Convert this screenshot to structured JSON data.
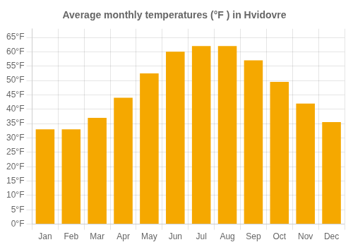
{
  "chart_data": {
    "type": "bar",
    "title": "Average monthly temperatures (°F ) in Hvidovre",
    "categories": [
      "Jan",
      "Feb",
      "Mar",
      "Apr",
      "May",
      "Jun",
      "Jul",
      "Aug",
      "Sep",
      "Oct",
      "Nov",
      "Dec"
    ],
    "values": [
      33,
      33,
      37,
      44,
      52.5,
      60,
      62,
      62,
      57,
      49.5,
      42,
      35.5
    ],
    "color": "#F5A800",
    "ylim": [
      0,
      68
    ],
    "yticks": [
      {
        "value": 0,
        "label": "0°F"
      },
      {
        "value": 5,
        "label": "5°F"
      },
      {
        "value": 10,
        "label": "10°F"
      },
      {
        "value": 15,
        "label": "15°F"
      },
      {
        "value": 20,
        "label": "20°F"
      },
      {
        "value": 25,
        "label": "25°F"
      },
      {
        "value": 30,
        "label": "30°F"
      },
      {
        "value": 35,
        "label": "35°F"
      },
      {
        "value": 40,
        "label": "40°F"
      },
      {
        "value": 45,
        "label": "45°F"
      },
      {
        "value": 50,
        "label": "50°F"
      },
      {
        "value": 55,
        "label": "55°F"
      },
      {
        "value": 60,
        "label": "60°F"
      },
      {
        "value": 65,
        "label": "65°F"
      }
    ],
    "grid": true
  }
}
